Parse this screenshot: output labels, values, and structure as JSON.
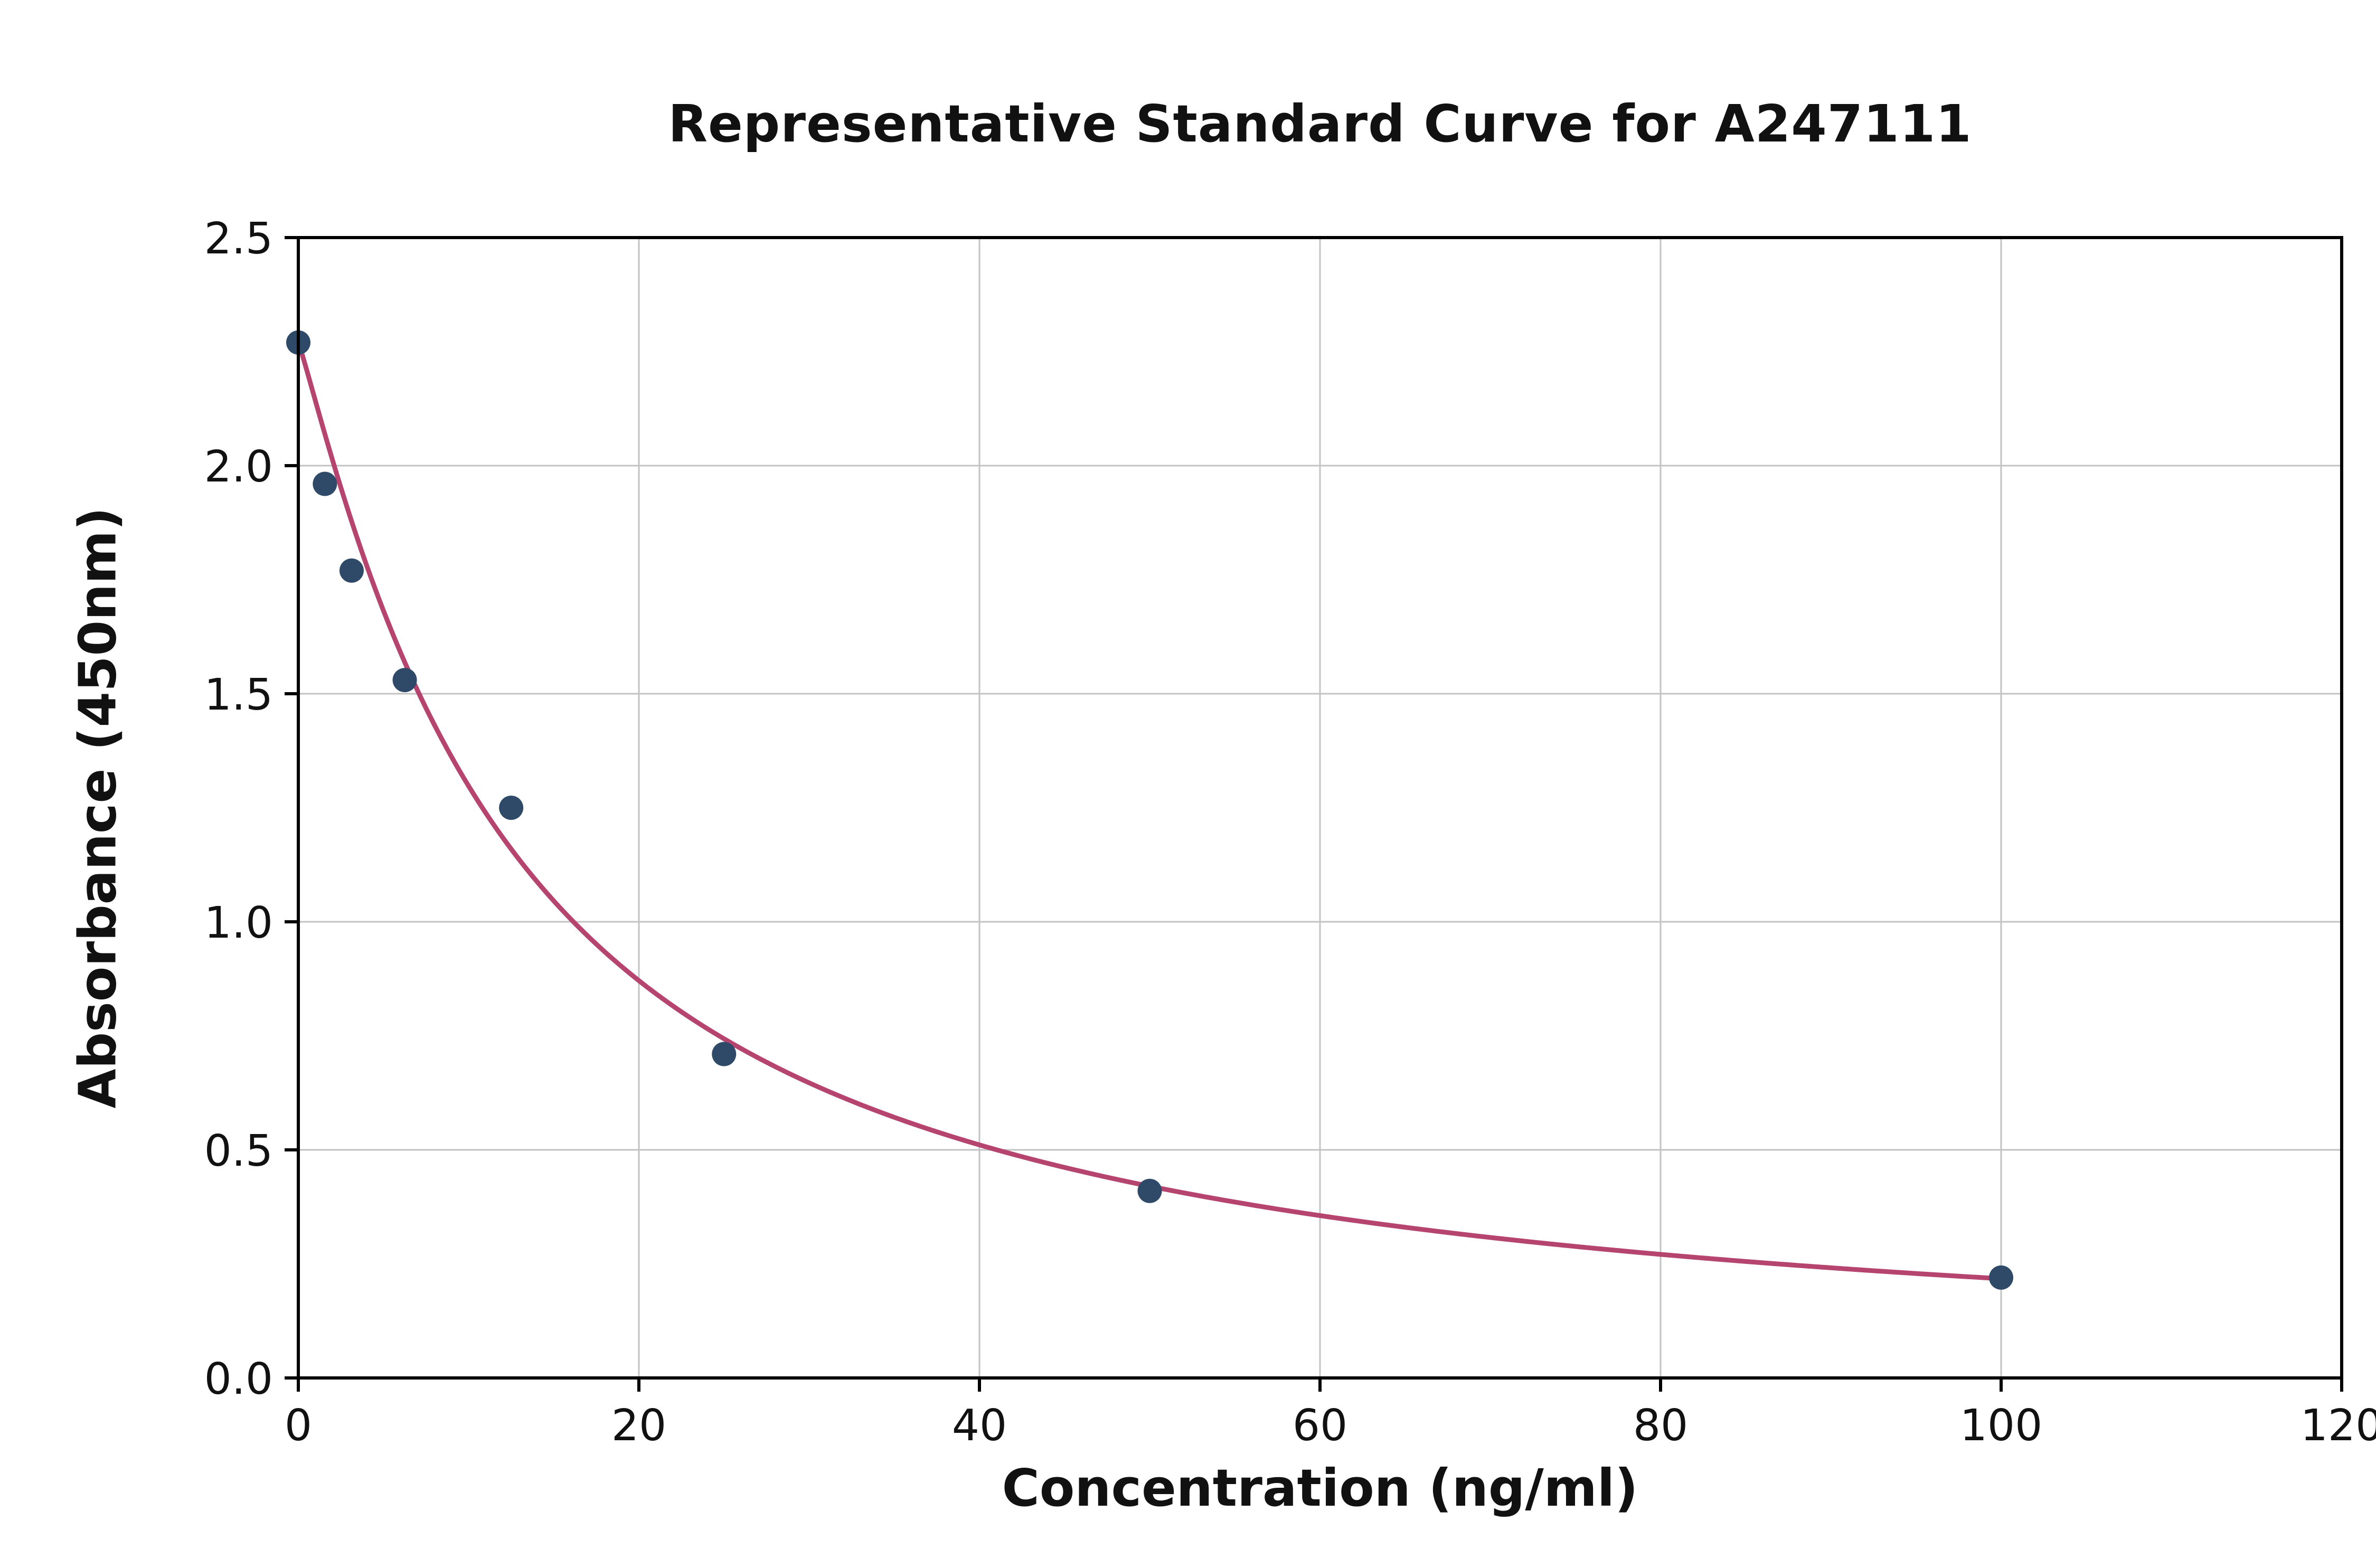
{
  "page": {
    "background": "#ffffff"
  },
  "chart_data": {
    "type": "scatter",
    "title": "Representative Standard Curve for A247111",
    "xlabel": "Concentration (ng/ml)",
    "ylabel": "Absorbance (450nm)",
    "xlim": [
      0,
      120
    ],
    "ylim": [
      0,
      2.5
    ],
    "xticks": [
      0,
      20,
      40,
      60,
      80,
      100,
      120
    ],
    "xtick_labels": [
      "0",
      "20",
      "40",
      "60",
      "80",
      "100",
      "120"
    ],
    "yticks": [
      0,
      0.5,
      1.0,
      1.5,
      2.0,
      2.5
    ],
    "ytick_labels": [
      "0.0",
      "0.5",
      "1.0",
      "1.5",
      "2.0",
      "2.5"
    ],
    "grid": true,
    "grid_color": "#c3c3c3",
    "axis_color": "#000000",
    "legend": "none",
    "series": [
      {
        "name": "standard-points",
        "type": "scatter",
        "color": "#2e4a68",
        "x": [
          0,
          1.56,
          3.13,
          6.25,
          12.5,
          25,
          50,
          100
        ],
        "y": [
          2.27,
          1.96,
          1.77,
          1.53,
          1.25,
          0.71,
          0.41,
          0.22
        ]
      },
      {
        "name": "4pl-fit-curve",
        "type": "line",
        "color": "#b5446e",
        "fit_4pl": {
          "a": 2.27,
          "b": 1.1,
          "c": 13,
          "d": 0
        },
        "x_start": 0,
        "x_end": 100
      }
    ]
  }
}
